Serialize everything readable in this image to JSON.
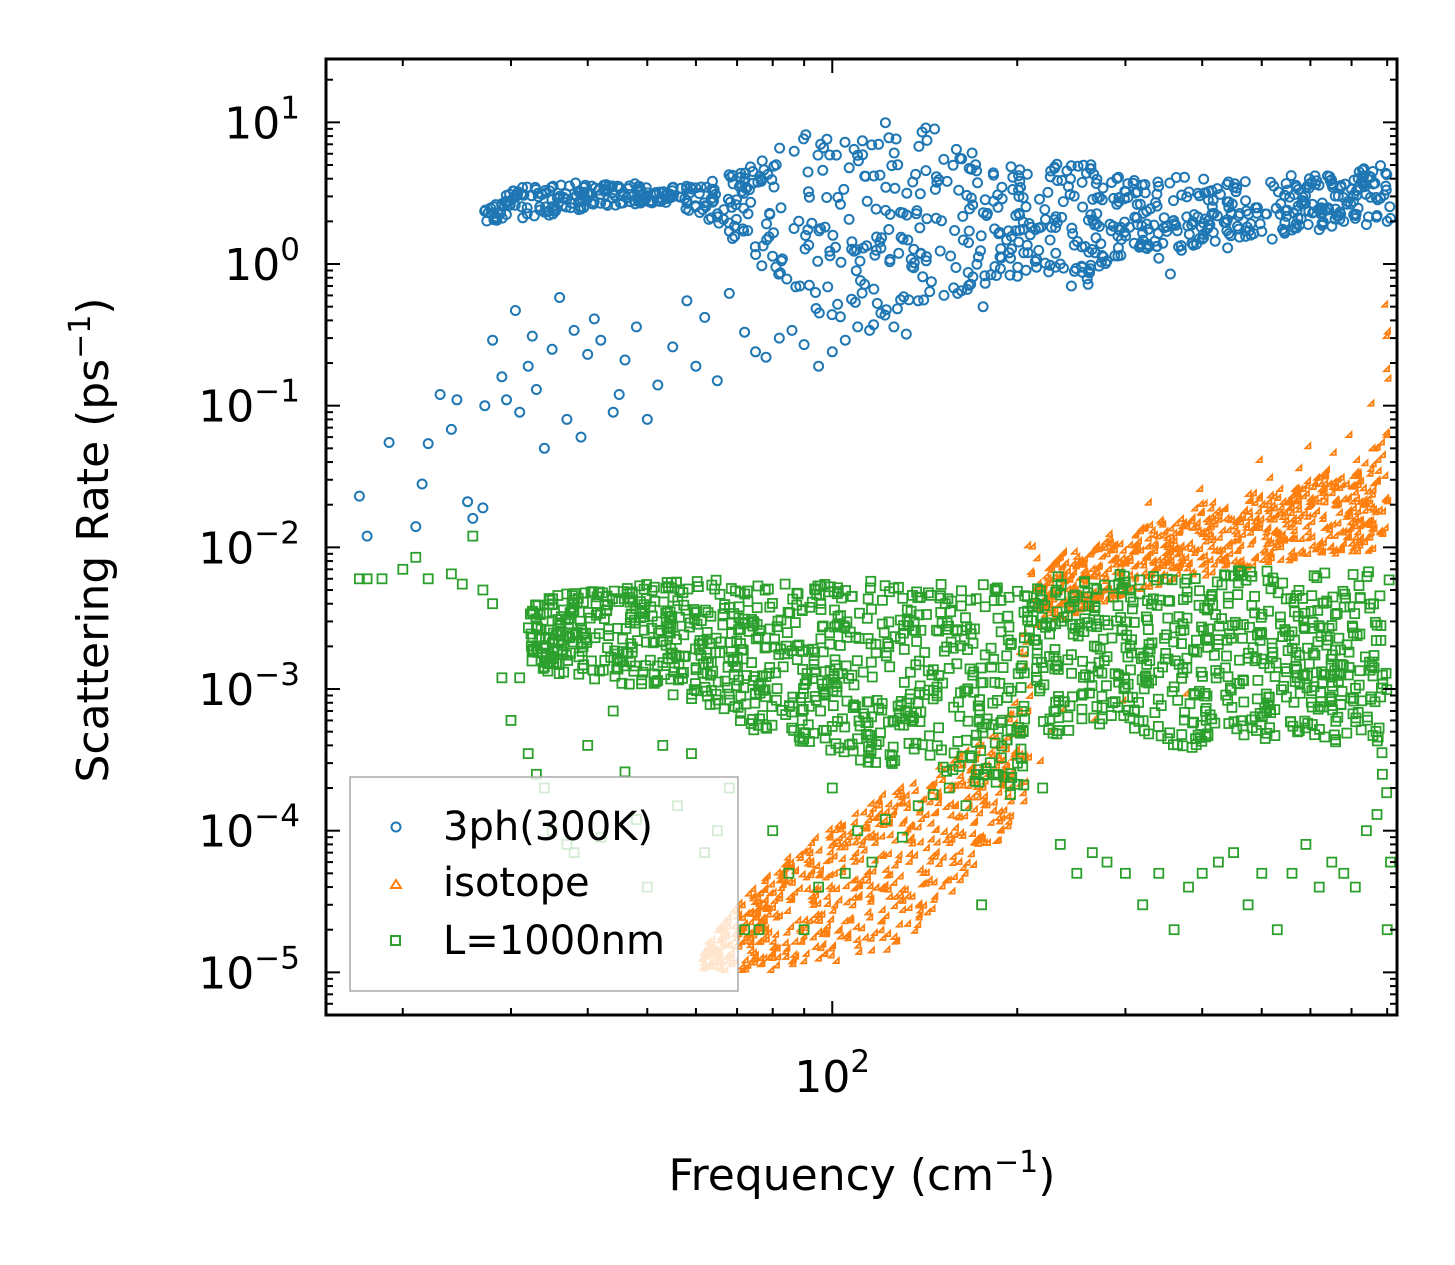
{
  "chart_data": {
    "type": "scatter",
    "xscale": "log",
    "yscale": "log",
    "xlim": [
      15,
      830
    ],
    "ylim": [
      5e-06,
      28
    ],
    "xlabel": "Frequency (cm",
    "xlabel_sup": "−1",
    "xlabel_end": ")",
    "ylabel": "Scattering Rate (ps",
    "ylabel_sup": "−1",
    "ylabel_end": ")",
    "x_ticks": [
      {
        "base": "10",
        "exp": "2",
        "value": 100
      }
    ],
    "y_ticks": [
      {
        "base": "10",
        "exp": "1",
        "value": 10
      },
      {
        "base": "10",
        "exp": "0",
        "value": 1
      },
      {
        "base": "10",
        "exp": "−1",
        "value": 0.1
      },
      {
        "base": "10",
        "exp": "−2",
        "value": 0.01
      },
      {
        "base": "10",
        "exp": "−3",
        "value": 0.001
      },
      {
        "base": "10",
        "exp": "−4",
        "value": 0.0001
      },
      {
        "base": "10",
        "exp": "−5",
        "value": 1e-05
      }
    ],
    "legend_position": "lower-left",
    "series": [
      {
        "name": "3ph(300K)",
        "marker": "circle",
        "color": "#1f77b4",
        "x": [
          17,
          17.5,
          19,
          21,
          21.5,
          22,
          23,
          24,
          24.5,
          25.5,
          26,
          27,
          27.2,
          28,
          29,
          29.5,
          30.5,
          31,
          32,
          32.5,
          33,
          34,
          35,
          36,
          37,
          38,
          39,
          40,
          41,
          42,
          44,
          45,
          46,
          48,
          50,
          52,
          55,
          58,
          60,
          62,
          65,
          68,
          72,
          75,
          78,
          82,
          86,
          90,
          95,
          100,
          105,
          110,
          115,
          120,
          126,
          132,
          138,
          145,
          152,
          160,
          168,
          176,
          185,
          195,
          205,
          215,
          225,
          235,
          245,
          255,
          268,
          280,
          295,
          310,
          325,
          340,
          355,
          370,
          385,
          400,
          420,
          440,
          460,
          480,
          500,
          520,
          545,
          570,
          595,
          620,
          650,
          680,
          710,
          740,
          770,
          800,
          810
        ],
        "y": [
          0.023,
          0.012,
          0.055,
          0.014,
          0.028,
          0.054,
          0.12,
          0.068,
          0.11,
          0.021,
          0.016,
          0.019,
          0.1,
          0.29,
          0.16,
          0.11,
          0.47,
          0.09,
          0.19,
          0.31,
          0.13,
          0.05,
          0.25,
          0.58,
          0.08,
          0.34,
          0.06,
          0.23,
          0.41,
          0.29,
          0.09,
          0.12,
          0.21,
          0.36,
          0.08,
          0.14,
          0.26,
          0.55,
          0.19,
          0.42,
          0.15,
          0.62,
          0.33,
          0.24,
          0.22,
          0.3,
          0.34,
          0.27,
          0.19,
          0.24,
          0.29,
          0.36,
          0.34,
          0.45,
          0.36,
          0.32,
          0.55,
          0.75,
          0.6,
          0.62,
          0.72,
          0.5,
          0.83,
          1.1,
          1.2,
          0.95,
          0.88,
          1.0,
          0.7,
          0.95,
          1.2,
          1.05,
          1.15,
          1.4,
          1.3,
          1.1,
          0.85,
          1.25,
          1.4,
          1.5,
          1.45,
          1.3,
          1.55,
          1.6,
          1.7,
          1.5,
          1.65,
          1.8,
          1.9,
          1.75,
          1.85,
          2.0,
          2.1,
          1.9,
          2.2,
          2.0,
          2.1
        ],
        "band_x": [
          27,
          30,
          35,
          40,
          45,
          50,
          55,
          60,
          65,
          70,
          75,
          80,
          85,
          90,
          95,
          100,
          110,
          120,
          130,
          140,
          150,
          165,
          180,
          200,
          220,
          240,
          260,
          280,
          300,
          330,
          360,
          400,
          450,
          500,
          550,
          600,
          650,
          700,
          750,
          810
        ],
        "band_lo": [
          2.0,
          2.0,
          2.2,
          2.5,
          2.6,
          2.7,
          2.6,
          2.3,
          1.8,
          1.3,
          1.0,
          0.9,
          0.75,
          0.6,
          0.4,
          0.3,
          0.28,
          0.38,
          0.45,
          0.55,
          0.6,
          0.65,
          0.7,
          0.8,
          1.0,
          0.9,
          0.7,
          1.0,
          1.2,
          1.3,
          1.3,
          1.3,
          1.5,
          1.6,
          1.7,
          1.8,
          1.9,
          2.0,
          2.1,
          2.2
        ],
        "band_hi": [
          2.8,
          3.4,
          3.7,
          3.8,
          3.8,
          3.6,
          3.5,
          3.8,
          4.0,
          4.5,
          5.5,
          6.5,
          7.5,
          8.5,
          9.0,
          9.5,
          8.5,
          11.0,
          12.0,
          11.0,
          8.5,
          7.0,
          5.5,
          5.0,
          4.5,
          5.5,
          6.0,
          5.0,
          4.0,
          3.8,
          4.5,
          4.0,
          3.8,
          4.0,
          4.2,
          4.3,
          4.4,
          4.6,
          5.0,
          5.2
        ]
      },
      {
        "name": "isotope",
        "marker": "triangle",
        "color": "#ff7f0e",
        "x": [
          62,
          64,
          66,
          68,
          70,
          72,
          75,
          78,
          80,
          84,
          88,
          92,
          96,
          100,
          105,
          110,
          115,
          120,
          125,
          130,
          140,
          150,
          160,
          170,
          180,
          190,
          200,
          210,
          220,
          230,
          240,
          250,
          260,
          270,
          285,
          300,
          315,
          330,
          345,
          360,
          380,
          400,
          420,
          440,
          460,
          480,
          500,
          520,
          540,
          560,
          580,
          600,
          620,
          640,
          660,
          680,
          700,
          720,
          740,
          760,
          780,
          800,
          805,
          810
        ],
        "y": [
          1.2e-05,
          1.1e-05,
          1.3e-05,
          1.5e-05,
          1.8e-05,
          2e-05,
          2.5e-05,
          2.8e-05,
          3.5e-05,
          4e-05,
          5e-05,
          6e-05,
          7e-05,
          6e-05,
          9e-05,
          8e-05,
          0.0001,
          0.00012,
          0.00011,
          0.00015,
          0.00013,
          0.00018,
          0.0002,
          0.00023,
          0.00028,
          0.0003,
          0.00035,
          0.01,
          0.0003,
          0.0005,
          0.0007,
          0.009,
          0.008,
          0.0006,
          0.012,
          0.0008,
          0.012,
          0.02,
          0.015,
          0.011,
          0.0009,
          0.025,
          0.02,
          0.018,
          0.012,
          0.023,
          0.04,
          0.03,
          0.025,
          0.02,
          0.035,
          0.05,
          0.03,
          0.022,
          0.045,
          0.03,
          0.06,
          0.04,
          0.02,
          0.1,
          0.04,
          0.5,
          0.3,
          0.15
        ],
        "band_x": [
          62,
          70,
          80,
          90,
          100,
          110,
          120,
          130,
          140,
          150,
          160,
          170,
          180,
          190,
          200,
          210,
          215,
          220,
          240,
          260,
          280,
          300,
          330,
          360,
          400,
          450,
          500,
          550,
          600,
          650,
          700,
          750,
          790,
          810
        ],
        "band_lo": [
          1e-05,
          1e-05,
          1e-05,
          1e-05,
          1.1e-05,
          1.2e-05,
          1.3e-05,
          1.5e-05,
          2e-05,
          2.8e-05,
          3.5e-05,
          5e-05,
          6e-05,
          8e-05,
          0.0001,
          0.00015,
          0.002,
          0.003,
          0.003,
          0.0035,
          0.004,
          0.0045,
          0.005,
          0.0055,
          0.006,
          0.0065,
          0.007,
          0.0075,
          0.008,
          0.0085,
          0.009,
          0.009,
          0.01,
          0.012
        ],
        "band_hi": [
          1.5e-05,
          3e-05,
          5e-05,
          8e-05,
          0.0001,
          0.00013,
          0.00017,
          0.0002,
          0.00025,
          0.0003,
          0.00035,
          0.0004,
          0.00045,
          0.0005,
          0.0008,
          0.008,
          0.012,
          0.006,
          0.009,
          0.008,
          0.012,
          0.01,
          0.015,
          0.014,
          0.02,
          0.018,
          0.025,
          0.022,
          0.03,
          0.035,
          0.03,
          0.04,
          0.1,
          0.45
        ]
      },
      {
        "name": "L=1000nm",
        "marker": "square",
        "color": "#2ca02c",
        "x": [
          17,
          17.5,
          18.5,
          20,
          21,
          22,
          24,
          25,
          26,
          27,
          28,
          29,
          30,
          31,
          32,
          33,
          34,
          35,
          37,
          38,
          40,
          42,
          44,
          46,
          48,
          50,
          53,
          56,
          59,
          62,
          65,
          68,
          72,
          76,
          80,
          85,
          90,
          95,
          100,
          105,
          110,
          116,
          122,
          130,
          138,
          146,
          155,
          165,
          175,
          185,
          195,
          205,
          220,
          235,
          250,
          265,
          280,
          300,
          320,
          340,
          360,
          380,
          400,
          425,
          450,
          475,
          500,
          530,
          560,
          590,
          620,
          650,
          680,
          710,
          740,
          770,
          800,
          810
        ],
        "y": [
          0.006,
          0.006,
          0.006,
          0.007,
          0.0085,
          0.006,
          0.0065,
          0.0055,
          0.012,
          0.005,
          0.004,
          0.0012,
          0.0006,
          0.0012,
          0.00035,
          0.00025,
          0.0002,
          0.0001,
          8e-05,
          7e-05,
          0.0004,
          9e-05,
          0.0007,
          0.00026,
          0.00012,
          4e-05,
          0.0004,
          0.00015,
          0.00035,
          7e-05,
          0.0001,
          0.0002,
          2e-05,
          2e-05,
          0.0001,
          5e-05,
          2e-05,
          4e-05,
          0.0002,
          5e-05,
          0.0001,
          6e-05,
          0.00012,
          9e-05,
          0.00015,
          0.00018,
          0.0002,
          0.00015,
          3e-05,
          0.00025,
          0.00018,
          0.00021,
          0.0002,
          8e-05,
          5e-05,
          7e-05,
          6e-05,
          5e-05,
          3e-05,
          5e-05,
          2e-05,
          4e-05,
          5e-05,
          6e-05,
          7e-05,
          3e-05,
          5e-05,
          2e-05,
          5e-05,
          8e-05,
          4e-05,
          6e-05,
          5e-05,
          4e-05,
          0.0001,
          0.00013,
          2e-05,
          6e-05
        ],
        "band_x": [
          32,
          35,
          40,
          45,
          50,
          55,
          60,
          65,
          70,
          75,
          80,
          90,
          100,
          110,
          120,
          130,
          140,
          150,
          160,
          170,
          180,
          190,
          200,
          205,
          210,
          220,
          240,
          260,
          280,
          300,
          330,
          360,
          400,
          450,
          500,
          550,
          600,
          650,
          700,
          750,
          800,
          810
        ],
        "band_lo": [
          0.0015,
          0.0013,
          0.0012,
          0.0011,
          0.001,
          0.0009,
          0.0008,
          0.0007,
          0.0006,
          0.0005,
          0.00045,
          0.0004,
          0.00035,
          0.0003,
          0.0003,
          0.00028,
          0.00026,
          0.00025,
          0.00024,
          0.00022,
          0.0002,
          0.0002,
          0.0002,
          0.0003,
          0.003,
          0.0004,
          0.0005,
          0.0005,
          0.0006,
          0.00045,
          0.0004,
          0.0003,
          0.0004,
          0.0005,
          0.0004,
          0.0005,
          0.00045,
          0.0004,
          0.00045,
          0.0005,
          0.00015,
          0.0002
        ],
        "band_hi": [
          0.004,
          0.0045,
          0.005,
          0.0055,
          0.0055,
          0.006,
          0.006,
          0.006,
          0.0055,
          0.0055,
          0.0055,
          0.0055,
          0.0055,
          0.0055,
          0.006,
          0.0055,
          0.0055,
          0.006,
          0.0055,
          0.0055,
          0.0055,
          0.005,
          0.005,
          0.005,
          0.005,
          0.006,
          0.0065,
          0.0065,
          0.007,
          0.0065,
          0.007,
          0.0065,
          0.0065,
          0.007,
          0.007,
          0.0065,
          0.0065,
          0.007,
          0.007,
          0.007,
          0.0065,
          0.006
        ]
      }
    ]
  }
}
